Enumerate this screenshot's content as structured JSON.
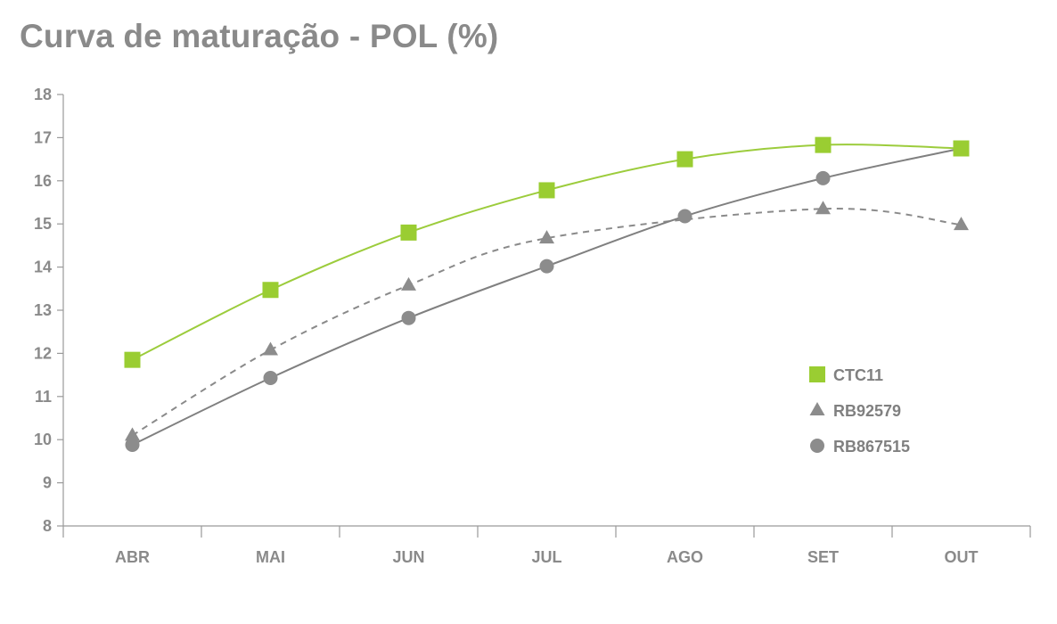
{
  "chart_data": {
    "type": "line",
    "title": "Curva de maturação - POL (%)",
    "xlabel": "",
    "ylabel": "",
    "categories": [
      "ABR",
      "MAI",
      "JUN",
      "JUL",
      "AGO",
      "SET",
      "OUT"
    ],
    "ylim": [
      8,
      18
    ],
    "yticks": [
      8,
      9,
      10,
      11,
      12,
      13,
      14,
      15,
      16,
      17,
      18
    ],
    "grid": false,
    "legend_position": "right",
    "series": [
      {
        "name": "CTC11",
        "marker": "square",
        "line_style": "solid",
        "color": "#9acd32",
        "values": [
          11.85,
          13.47,
          14.8,
          15.78,
          16.5,
          16.83,
          16.75
        ]
      },
      {
        "name": "RB92579",
        "marker": "triangle",
        "line_style": "dashed",
        "color": "#8c8c8c",
        "values": [
          10.1,
          12.08,
          13.58,
          14.67,
          null,
          15.35,
          14.98
        ]
      },
      {
        "name": "RB867515",
        "marker": "circle",
        "line_style": "solid",
        "color": "#8c8c8c",
        "values": [
          9.88,
          11.43,
          12.82,
          14.02,
          15.18,
          16.06,
          16.75
        ]
      }
    ]
  }
}
